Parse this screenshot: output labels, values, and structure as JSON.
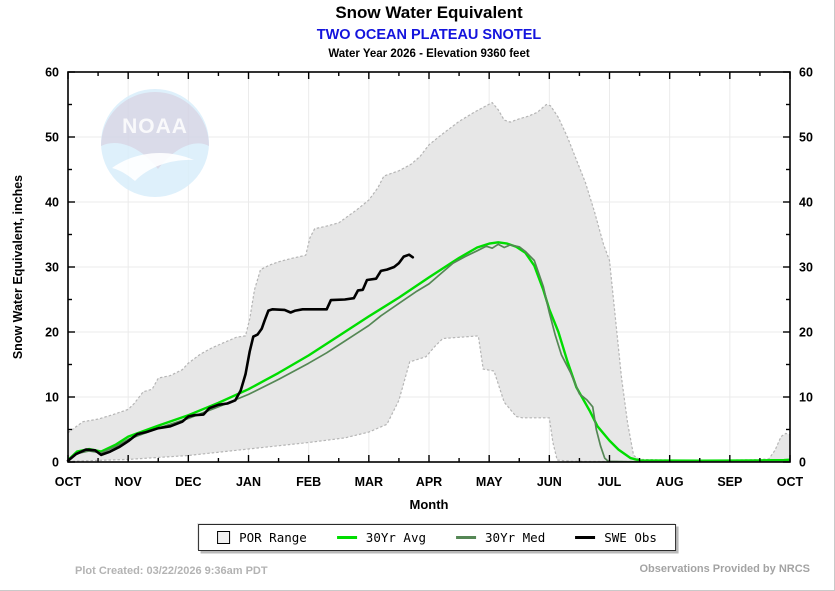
{
  "header": {
    "title": "Snow Water Equivalent",
    "station": "TWO OCEAN PLATEAU SNOTEL",
    "subtitle": "Water Year 2026 -  Elevation 9360 feet"
  },
  "axes": {
    "y_label": "Snow Water Equivalent, inches",
    "x_label": "Month",
    "y_ticks": [
      0,
      10,
      20,
      30,
      40,
      50,
      60
    ],
    "x_tick_labels": [
      "OCT",
      "NOV",
      "DEC",
      "JAN",
      "FEB",
      "MAR",
      "APR",
      "MAY",
      "JUN",
      "JUL",
      "AUG",
      "SEP",
      "OCT"
    ]
  },
  "legend": {
    "items": [
      {
        "label": "POR Range",
        "type": "box",
        "color": "#f1f1f1",
        "border": "#000000"
      },
      {
        "label": "30Yr Avg",
        "type": "line",
        "color": "#00dd00"
      },
      {
        "label": "30Yr Med",
        "type": "line",
        "color": "#558755"
      },
      {
        "label": "SWE Obs",
        "type": "line",
        "color": "#000000"
      }
    ]
  },
  "watermark": {
    "text": "NOAA"
  },
  "footer": {
    "created": "Plot Created: 03/22/2026 9:36am PDT",
    "provider": "Observations Provided by NRCS"
  },
  "colors": {
    "avg": "#00dd00",
    "med": "#558755",
    "obs": "#000000",
    "band_fill": "#e7e7e7",
    "band_edge": "#b5b5b5",
    "grid": "#ebebeb",
    "axis": "#000000",
    "station_blue": "#1414dd"
  },
  "chart_data": {
    "type": "line",
    "title": "Snow Water Equivalent",
    "subtitle": "TWO OCEAN PLATEAU SNOTEL - Water Year 2026 - Elevation 9360 feet",
    "xlabel": "Month",
    "ylabel": "Snow Water Equivalent, inches",
    "x_unit": "months since Oct 1 (0 = Oct 1, 12 = next Oct 1)",
    "y_unit": "inches",
    "ylim": [
      0,
      60
    ],
    "xlim": [
      0,
      12
    ],
    "grid": true,
    "legend_position": "bottom",
    "x_categories": [
      "OCT",
      "NOV",
      "DEC",
      "JAN",
      "FEB",
      "MAR",
      "APR",
      "MAY",
      "JUN",
      "JUL",
      "AUG",
      "SEP",
      "OCT"
    ],
    "series": [
      {
        "name": "POR Range max",
        "role": "band_max",
        "points": [
          [
            0,
            4.5
          ],
          [
            0.1,
            5.2
          ],
          [
            0.25,
            6.2
          ],
          [
            0.5,
            6.6
          ],
          [
            0.75,
            7.3
          ],
          [
            1.0,
            8.1
          ],
          [
            1.1,
            9.0
          ],
          [
            1.25,
            10.8
          ],
          [
            1.4,
            11.2
          ],
          [
            1.5,
            12.9
          ],
          [
            1.7,
            13.3
          ],
          [
            1.9,
            14.2
          ],
          [
            2.0,
            15.2
          ],
          [
            2.2,
            16.6
          ],
          [
            2.4,
            17.6
          ],
          [
            2.6,
            18.4
          ],
          [
            2.8,
            19.2
          ],
          [
            2.95,
            19.4
          ],
          [
            3.02,
            22.0
          ],
          [
            3.1,
            26.5
          ],
          [
            3.2,
            29.6
          ],
          [
            3.35,
            30.3
          ],
          [
            3.5,
            30.8
          ],
          [
            3.75,
            31.4
          ],
          [
            3.95,
            31.8
          ],
          [
            4.02,
            34.5
          ],
          [
            4.1,
            35.9
          ],
          [
            4.3,
            36.3
          ],
          [
            4.5,
            36.8
          ],
          [
            4.65,
            37.8
          ],
          [
            4.8,
            38.8
          ],
          [
            5.0,
            40.3
          ],
          [
            5.15,
            42.2
          ],
          [
            5.25,
            44.0
          ],
          [
            5.5,
            44.8
          ],
          [
            5.7,
            45.8
          ],
          [
            5.85,
            47.0
          ],
          [
            6.0,
            48.8
          ],
          [
            6.2,
            50.3
          ],
          [
            6.5,
            52.4
          ],
          [
            6.75,
            53.8
          ],
          [
            6.95,
            54.8
          ],
          [
            7.05,
            55.3
          ],
          [
            7.15,
            54.2
          ],
          [
            7.25,
            52.6
          ],
          [
            7.35,
            52.3
          ],
          [
            7.5,
            52.8
          ],
          [
            7.65,
            53.2
          ],
          [
            7.8,
            53.8
          ],
          [
            7.95,
            55.0
          ],
          [
            8.02,
            54.8
          ],
          [
            8.15,
            53.0
          ],
          [
            8.3,
            50.0
          ],
          [
            8.45,
            46.5
          ],
          [
            8.6,
            43.0
          ],
          [
            8.75,
            38.5
          ],
          [
            8.9,
            33.5
          ],
          [
            9.0,
            31.0
          ],
          [
            9.1,
            22.0
          ],
          [
            9.2,
            13.0
          ],
          [
            9.3,
            6.0
          ],
          [
            9.4,
            1.0
          ],
          [
            9.5,
            0.4
          ],
          [
            10,
            0.3
          ],
          [
            11,
            0.3
          ],
          [
            11.5,
            0.35
          ],
          [
            11.65,
            0.5
          ],
          [
            11.75,
            1.8
          ],
          [
            11.85,
            3.9
          ],
          [
            11.93,
            4.4
          ],
          [
            12,
            4.2
          ]
        ]
      },
      {
        "name": "POR Range min",
        "role": "band_min",
        "points": [
          [
            0,
            0.1
          ],
          [
            1,
            0.4
          ],
          [
            2,
            1.0
          ],
          [
            3,
            2.0
          ],
          [
            4,
            3.0
          ],
          [
            4.6,
            3.7
          ],
          [
            5.0,
            4.6
          ],
          [
            5.3,
            5.8
          ],
          [
            5.5,
            9.5
          ],
          [
            5.68,
            15.4
          ],
          [
            5.95,
            16.2
          ],
          [
            6.1,
            17.8
          ],
          [
            6.23,
            19.0
          ],
          [
            6.82,
            19.4
          ],
          [
            6.9,
            14.3
          ],
          [
            7.08,
            14.0
          ],
          [
            7.25,
            9.2
          ],
          [
            7.45,
            7.0
          ],
          [
            7.55,
            6.8
          ],
          [
            8.0,
            6.8
          ],
          [
            8.06,
            3.0
          ],
          [
            8.13,
            0.3
          ],
          [
            8.4,
            0.1
          ],
          [
            12,
            0.05
          ]
        ]
      },
      {
        "name": "30Yr Avg",
        "role": "avg",
        "points": [
          [
            0,
            0.3
          ],
          [
            0.15,
            1.6
          ],
          [
            0.35,
            2.0
          ],
          [
            0.55,
            1.6
          ],
          [
            0.8,
            2.7
          ],
          [
            1.0,
            3.9
          ],
          [
            1.5,
            5.6
          ],
          [
            2.0,
            7.2
          ],
          [
            2.5,
            9.1
          ],
          [
            3.0,
            11.2
          ],
          [
            3.5,
            13.7
          ],
          [
            4.0,
            16.4
          ],
          [
            4.5,
            19.4
          ],
          [
            5.0,
            22.4
          ],
          [
            5.5,
            25.3
          ],
          [
            6.0,
            28.4
          ],
          [
            6.5,
            31.4
          ],
          [
            6.8,
            33.0
          ],
          [
            7.0,
            33.6
          ],
          [
            7.15,
            33.8
          ],
          [
            7.3,
            33.6
          ],
          [
            7.45,
            33.1
          ],
          [
            7.6,
            32.2
          ],
          [
            7.75,
            30.2
          ],
          [
            7.9,
            26.5
          ],
          [
            8.0,
            23.5
          ],
          [
            8.15,
            20.0
          ],
          [
            8.3,
            15.5
          ],
          [
            8.45,
            11.5
          ],
          [
            8.67,
            7.9
          ],
          [
            8.8,
            5.5
          ],
          [
            9.0,
            3.3
          ],
          [
            9.15,
            1.9
          ],
          [
            9.35,
            0.6
          ],
          [
            9.5,
            0.25
          ],
          [
            10.5,
            0.2
          ],
          [
            11.5,
            0.25
          ],
          [
            11.9,
            0.3
          ],
          [
            12,
            0.35
          ]
        ]
      },
      {
        "name": "30Yr Med",
        "role": "med",
        "points": [
          [
            0,
            0.25
          ],
          [
            0.15,
            1.3
          ],
          [
            0.35,
            1.7
          ],
          [
            0.55,
            1.4
          ],
          [
            0.8,
            2.4
          ],
          [
            1.0,
            3.5
          ],
          [
            1.5,
            5.2
          ],
          [
            2.0,
            6.7
          ],
          [
            2.5,
            8.5
          ],
          [
            3.0,
            10.4
          ],
          [
            3.5,
            12.7
          ],
          [
            4.0,
            15.2
          ],
          [
            4.3,
            16.8
          ],
          [
            4.5,
            18.0
          ],
          [
            4.8,
            19.8
          ],
          [
            5.0,
            21.0
          ],
          [
            5.2,
            22.5
          ],
          [
            5.5,
            24.4
          ],
          [
            5.8,
            26.3
          ],
          [
            6.0,
            27.4
          ],
          [
            6.2,
            29.0
          ],
          [
            6.4,
            30.6
          ],
          [
            6.6,
            31.6
          ],
          [
            6.8,
            32.5
          ],
          [
            6.95,
            33.2
          ],
          [
            7.05,
            32.9
          ],
          [
            7.15,
            33.5
          ],
          [
            7.25,
            33.0
          ],
          [
            7.35,
            33.4
          ],
          [
            7.5,
            33.1
          ],
          [
            7.6,
            32.4
          ],
          [
            7.75,
            31.0
          ],
          [
            7.9,
            27.0
          ],
          [
            8.0,
            23.0
          ],
          [
            8.1,
            19.5
          ],
          [
            8.2,
            16.5
          ],
          [
            8.35,
            13.8
          ],
          [
            8.5,
            10.5
          ],
          [
            8.62,
            9.6
          ],
          [
            8.72,
            8.5
          ],
          [
            8.78,
            5.0
          ],
          [
            8.85,
            2.5
          ],
          [
            8.92,
            0.6
          ],
          [
            8.98,
            0.1
          ],
          [
            9.3,
            0.05
          ],
          [
            12,
            0.05
          ]
        ]
      },
      {
        "name": "SWE Obs",
        "role": "obs",
        "points": [
          [
            0,
            0.2
          ],
          [
            0.13,
            1.2
          ],
          [
            0.3,
            1.9
          ],
          [
            0.45,
            1.8
          ],
          [
            0.55,
            1.1
          ],
          [
            0.7,
            1.6
          ],
          [
            0.85,
            2.3
          ],
          [
            1.0,
            3.2
          ],
          [
            1.15,
            4.3
          ],
          [
            1.3,
            4.6
          ],
          [
            1.5,
            5.2
          ],
          [
            1.7,
            5.5
          ],
          [
            1.9,
            6.2
          ],
          [
            2.0,
            7.0
          ],
          [
            2.1,
            7.2
          ],
          [
            2.25,
            7.3
          ],
          [
            2.35,
            8.3
          ],
          [
            2.5,
            8.8
          ],
          [
            2.65,
            9.0
          ],
          [
            2.78,
            9.5
          ],
          [
            2.87,
            11.0
          ],
          [
            2.95,
            13.5
          ],
          [
            3.02,
            17.0
          ],
          [
            3.08,
            19.3
          ],
          [
            3.15,
            19.6
          ],
          [
            3.22,
            20.5
          ],
          [
            3.27,
            21.8
          ],
          [
            3.33,
            23.3
          ],
          [
            3.4,
            23.5
          ],
          [
            3.6,
            23.4
          ],
          [
            3.7,
            23.0
          ],
          [
            3.78,
            23.3
          ],
          [
            3.9,
            23.5
          ],
          [
            4.3,
            23.5
          ],
          [
            4.37,
            24.9
          ],
          [
            4.6,
            25.0
          ],
          [
            4.75,
            25.2
          ],
          [
            4.82,
            26.4
          ],
          [
            4.9,
            26.5
          ],
          [
            4.97,
            28.0
          ],
          [
            5.12,
            28.2
          ],
          [
            5.2,
            29.4
          ],
          [
            5.3,
            29.6
          ],
          [
            5.42,
            30.0
          ],
          [
            5.5,
            30.6
          ],
          [
            5.58,
            31.6
          ],
          [
            5.67,
            31.9
          ],
          [
            5.73,
            31.5
          ]
        ]
      }
    ]
  }
}
